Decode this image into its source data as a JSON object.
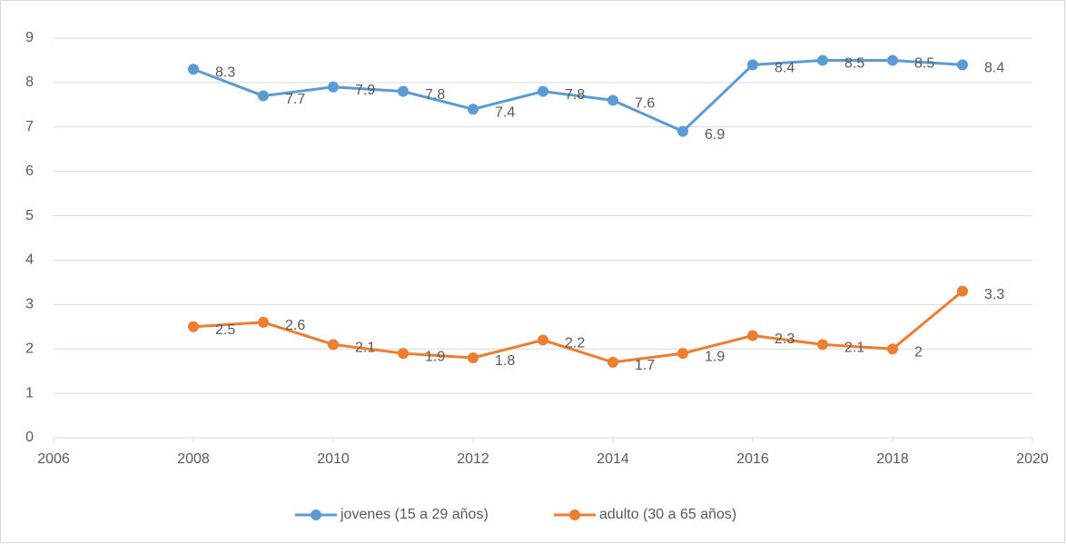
{
  "chart_data": {
    "type": "line",
    "x": [
      2008,
      2009,
      2010,
      2011,
      2012,
      2013,
      2014,
      2015,
      2016,
      2017,
      2018,
      2019
    ],
    "series": [
      {
        "name": "jovenes (15 a 29 años)",
        "color": "#5b9bd5",
        "values": [
          8.3,
          7.7,
          7.9,
          7.8,
          7.4,
          7.8,
          7.6,
          6.9,
          8.4,
          8.5,
          8.5,
          8.4
        ]
      },
      {
        "name": "adulto (30 a 65 años)",
        "color": "#ed7d31",
        "values": [
          2.5,
          2.6,
          2.1,
          1.9,
          1.8,
          2.2,
          1.7,
          1.9,
          2.3,
          2.1,
          2,
          3.3
        ]
      }
    ],
    "xlim": [
      2006,
      2020
    ],
    "xticks": [
      2006,
      2008,
      2010,
      2012,
      2014,
      2016,
      2018,
      2020
    ],
    "ylim": [
      0,
      9
    ],
    "yticks": [
      0,
      1,
      2,
      3,
      4,
      5,
      6,
      7,
      8,
      9
    ],
    "grid": true,
    "legend": "bottom"
  }
}
